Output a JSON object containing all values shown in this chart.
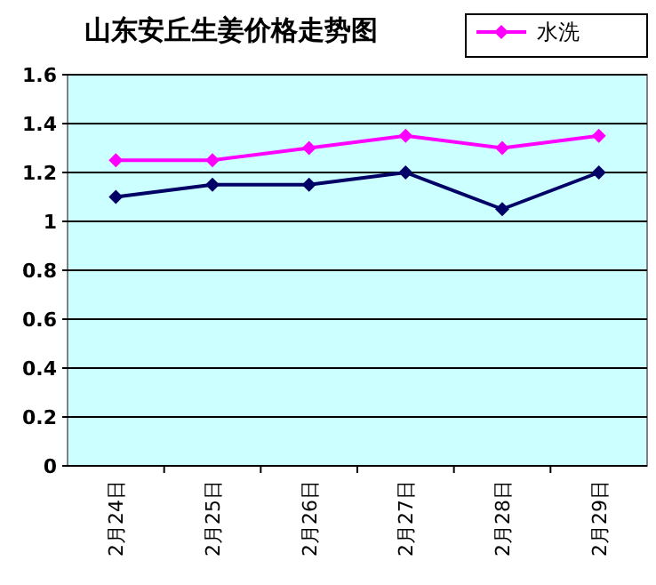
{
  "chart_data": {
    "type": "line",
    "title": "山东安丘生姜价格走势图",
    "categories": [
      "2月24日",
      "2月25日",
      "2月26日",
      "2月27日",
      "2月28日",
      "2月29日"
    ],
    "series": [
      {
        "name": "水洗",
        "color": "#ff00ff",
        "values": [
          1.25,
          1.25,
          1.3,
          1.35,
          1.3,
          1.35
        ]
      },
      {
        "color": "#000066",
        "values": [
          1.1,
          1.15,
          1.15,
          1.2,
          1.05,
          1.2
        ]
      }
    ],
    "ylim": [
      0,
      1.6
    ],
    "yticks": [
      0,
      0.2,
      0.4,
      0.6,
      0.8,
      1,
      1.2,
      1.4,
      1.6
    ],
    "grid": "y",
    "legend": "top right",
    "marker": "diamond",
    "line_style": "solid"
  }
}
